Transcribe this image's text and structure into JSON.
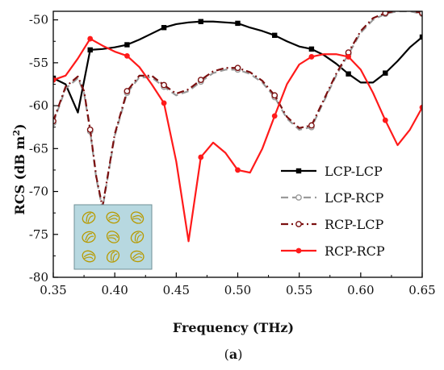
{
  "caption_open": "(",
  "caption_letter": "a",
  "caption_close": ")",
  "chart_data": {
    "type": "line",
    "xlabel": "Frequency (THz)",
    "ylabel_main": "RCS (dB m",
    "ylabel_sup": "2",
    "ylabel_close": ")",
    "xlim": [
      0.35,
      0.65
    ],
    "ylim": [
      -80,
      -49
    ],
    "xticks": [
      0.35,
      0.4,
      0.45,
      0.5,
      0.55,
      0.6,
      0.65
    ],
    "xtick_labels": [
      "0.35",
      "0.40",
      "0.45",
      "0.50",
      "0.55",
      "0.60",
      "0.65"
    ],
    "yticks": [
      -50,
      -55,
      -60,
      -65,
      -70,
      -75,
      -80
    ],
    "ytick_labels": [
      "-50",
      "-55",
      "-60",
      "-65",
      "-70",
      "-75",
      "-80"
    ],
    "grid": false,
    "legend_position": "lower-right",
    "series": [
      {
        "name": "LCP-LCP",
        "color": "#000000",
        "dash": "solid",
        "marker": "square",
        "x": [
          0.35,
          0.36,
          0.37,
          0.38,
          0.39,
          0.4,
          0.41,
          0.42,
          0.43,
          0.44,
          0.45,
          0.46,
          0.47,
          0.48,
          0.49,
          0.5,
          0.51,
          0.52,
          0.53,
          0.54,
          0.55,
          0.56,
          0.57,
          0.58,
          0.59,
          0.6,
          0.61,
          0.62,
          0.63,
          0.64,
          0.65
        ],
        "y": [
          -56.8,
          -57.5,
          -60.8,
          -53.5,
          -53.4,
          -53.2,
          -52.9,
          -52.3,
          -51.6,
          -50.9,
          -50.5,
          -50.3,
          -50.2,
          -50.2,
          -50.3,
          -50.4,
          -50.9,
          -51.3,
          -51.8,
          -52.5,
          -53.1,
          -53.4,
          -54.1,
          -55.1,
          -56.3,
          -57.3,
          -57.3,
          -56.2,
          -54.8,
          -53.2,
          -52.0
        ],
        "markers_x": [
          0.35,
          0.38,
          0.41,
          0.44,
          0.47,
          0.5,
          0.53,
          0.56,
          0.59,
          0.62,
          0.65
        ]
      },
      {
        "name": "LCP-RCP",
        "color": "#9a9a9a",
        "dash": "dash",
        "marker": "open-circle",
        "x": [
          0.35,
          0.36,
          0.37,
          0.375,
          0.38,
          0.385,
          0.39,
          0.4,
          0.41,
          0.42,
          0.43,
          0.44,
          0.45,
          0.46,
          0.47,
          0.48,
          0.49,
          0.5,
          0.51,
          0.52,
          0.53,
          0.54,
          0.55,
          0.56,
          0.57,
          0.58,
          0.59,
          0.6,
          0.61,
          0.62,
          0.63,
          0.64,
          0.65
        ],
        "y": [
          -62.0,
          -58.0,
          -56.8,
          -58.5,
          -63.0,
          -68.5,
          -72.0,
          -63.5,
          -58.5,
          -56.7,
          -56.7,
          -57.8,
          -58.8,
          -58.3,
          -57.2,
          -56.2,
          -55.8,
          -55.8,
          -56.3,
          -57.3,
          -59.0,
          -61.5,
          -62.8,
          -62.5,
          -59.5,
          -56.5,
          -54.0,
          -51.5,
          -50.0,
          -49.3,
          -49.0,
          -49.0,
          -49.3
        ],
        "markers_x": [
          0.35,
          0.38,
          0.41,
          0.44,
          0.47,
          0.5,
          0.53,
          0.56,
          0.59,
          0.62,
          0.65
        ]
      },
      {
        "name": "RCP-LCP",
        "color": "#7b1010",
        "dash": "dashdot",
        "marker": "open-circle",
        "x": [
          0.35,
          0.36,
          0.37,
          0.375,
          0.38,
          0.385,
          0.39,
          0.4,
          0.41,
          0.42,
          0.43,
          0.44,
          0.45,
          0.46,
          0.47,
          0.48,
          0.49,
          0.5,
          0.51,
          0.52,
          0.53,
          0.54,
          0.55,
          0.56,
          0.57,
          0.58,
          0.59,
          0.6,
          0.61,
          0.62,
          0.63,
          0.64,
          0.65
        ],
        "y": [
          -61.8,
          -57.8,
          -56.6,
          -58.3,
          -62.8,
          -68.3,
          -71.8,
          -63.3,
          -58.3,
          -56.5,
          -56.5,
          -57.6,
          -58.6,
          -58.1,
          -57.0,
          -56.0,
          -55.6,
          -55.6,
          -56.1,
          -57.1,
          -58.8,
          -61.3,
          -62.6,
          -62.3,
          -59.3,
          -56.3,
          -53.8,
          -51.3,
          -49.8,
          -49.2,
          -48.9,
          -48.9,
          -49.2
        ],
        "markers_x": [
          0.35,
          0.38,
          0.41,
          0.44,
          0.47,
          0.5,
          0.53,
          0.56,
          0.59,
          0.62,
          0.65
        ]
      },
      {
        "name": "RCP-RCP",
        "color": "#ff1a1a",
        "dash": "solid",
        "marker": "filled-circle",
        "x": [
          0.35,
          0.36,
          0.37,
          0.38,
          0.39,
          0.4,
          0.41,
          0.42,
          0.43,
          0.44,
          0.45,
          0.46,
          0.47,
          0.48,
          0.49,
          0.5,
          0.51,
          0.52,
          0.53,
          0.54,
          0.55,
          0.56,
          0.57,
          0.58,
          0.59,
          0.6,
          0.61,
          0.62,
          0.63,
          0.64,
          0.65
        ],
        "y": [
          -57.0,
          -56.5,
          -54.5,
          -52.2,
          -53.0,
          -53.7,
          -54.2,
          -55.5,
          -57.5,
          -59.7,
          -66.5,
          -75.8,
          -66.0,
          -64.3,
          -65.5,
          -67.5,
          -67.8,
          -65.0,
          -61.2,
          -57.5,
          -55.2,
          -54.3,
          -54.0,
          -54.0,
          -54.3,
          -55.8,
          -58.5,
          -61.7,
          -64.6,
          -62.8,
          -60.2
        ],
        "markers_x": [
          0.35,
          0.38,
          0.41,
          0.44,
          0.47,
          0.5,
          0.53,
          0.56,
          0.59,
          0.62,
          0.65
        ]
      }
    ]
  },
  "inset": {
    "background": "#b7d8e0",
    "border": "#6f8f96",
    "ring_color": "#b79a00"
  }
}
